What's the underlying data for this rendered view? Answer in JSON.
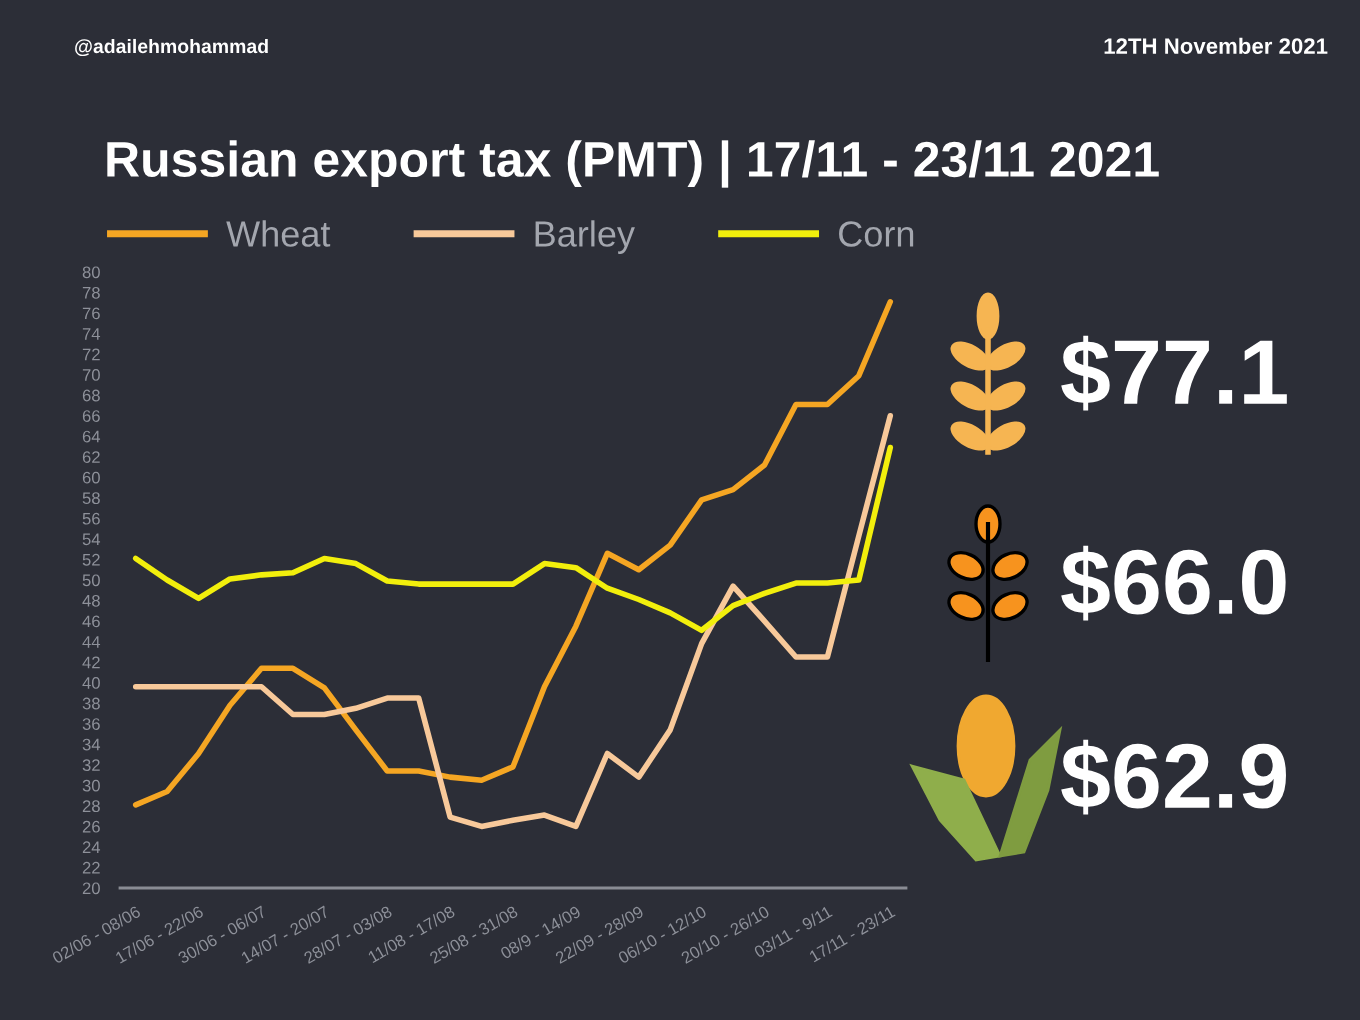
{
  "chart_data": {
    "type": "line",
    "title": "Russian export tax (PMT) | 17/11 - 23/11 2021",
    "annotations": [
      "@adailehmohammad",
      "12TH November 2021",
      "$77.1",
      "$66.0",
      "$62.9"
    ],
    "categories": [
      "02/06 - 08/06",
      null,
      "17/06 - 22/06",
      null,
      "30/06 - 06/07",
      null,
      "14/07 - 20/07",
      null,
      "28/07 - 03/08",
      null,
      "11/08 - 17/08",
      null,
      "25/08 - 31/08",
      null,
      "08/9 - 14/09",
      null,
      "22/09 - 28/09",
      null,
      "06/10 - 12/10",
      null,
      "20/10 - 26/10",
      null,
      "03/11 - 9/11",
      null,
      "17/11 - 23/11"
    ],
    "series": [
      {
        "name": "Wheat",
        "color": "#f5a623",
        "values": [
          28.1,
          29.4,
          33.1,
          37.8,
          41.4,
          41.4,
          39.5,
          35.4,
          31.4,
          31.4,
          30.8,
          30.5,
          31.8,
          39.6,
          45.5,
          52.6,
          51.0,
          53.4,
          57.8,
          58.8,
          61.2,
          67.1,
          67.1,
          69.9,
          77.1
        ]
      },
      {
        "name": "Barley",
        "color": "#f8c99a",
        "values": [
          39.6,
          39.6,
          39.6,
          39.6,
          39.6,
          36.9,
          36.9,
          37.5,
          38.5,
          38.5,
          26.9,
          26.0,
          26.6,
          27.1,
          26.0,
          33.1,
          30.8,
          35.4,
          43.8,
          49.4,
          46.0,
          42.5,
          42.5,
          54.3,
          66.0
        ]
      },
      {
        "name": "Corn",
        "color": "#f2ef0c",
        "values": [
          52.1,
          50.0,
          48.2,
          50.1,
          50.5,
          50.7,
          52.1,
          51.6,
          49.9,
          49.6,
          49.6,
          49.6,
          49.6,
          51.6,
          51.2,
          49.2,
          48.1,
          46.8,
          45.1,
          47.5,
          48.7,
          49.7,
          49.7,
          50.0,
          62.9
        ]
      }
    ],
    "ylim": [
      20,
      80
    ],
    "yticks": [
      20,
      22,
      24,
      26,
      28,
      30,
      32,
      34,
      36,
      38,
      40,
      42,
      44,
      46,
      48,
      50,
      52,
      54,
      56,
      58,
      60,
      62,
      64,
      66,
      68,
      70,
      72,
      74,
      76,
      78,
      80
    ],
    "legend": "top"
  }
}
